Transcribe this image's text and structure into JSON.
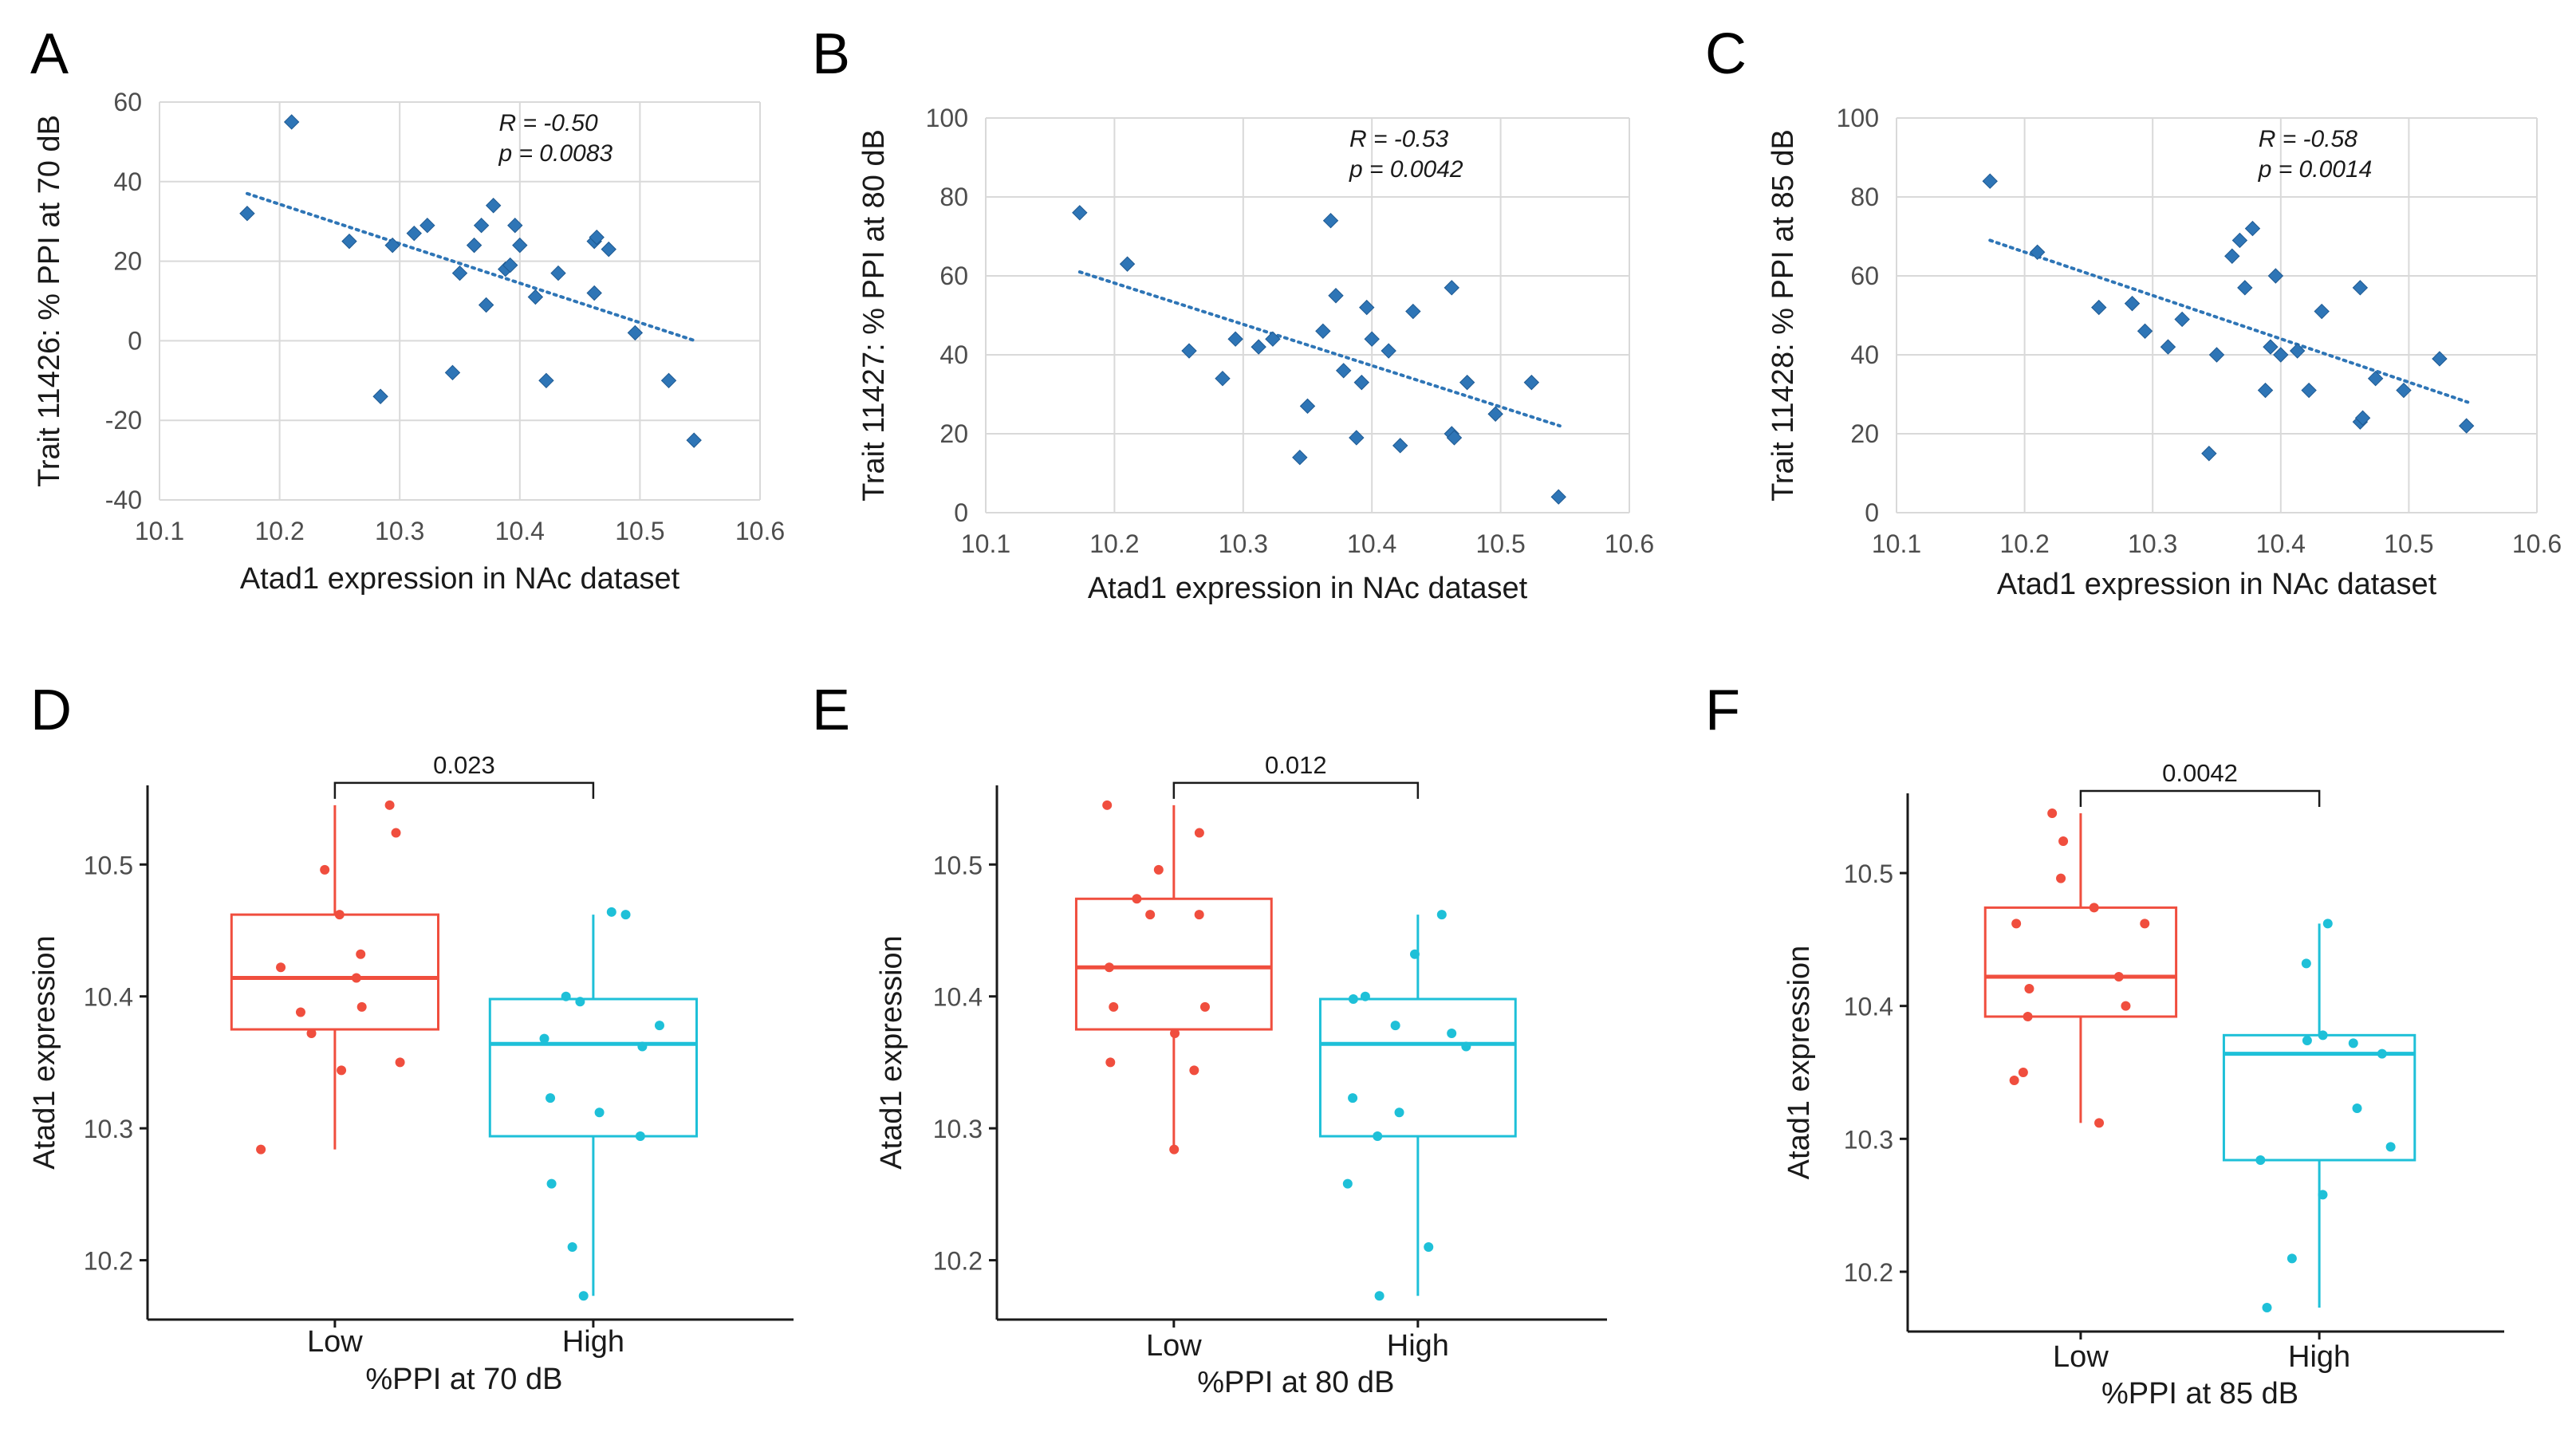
{
  "colors": {
    "point": "#2e75b6",
    "trend": "#2e75b6",
    "grid": "#d9d9d9",
    "low": "#f04e3e",
    "high": "#1ec0d8",
    "axis": "#1a1a1a"
  },
  "chart_data": [
    {
      "panel": "A",
      "type": "scatter",
      "xlabel": "Atad1 expression in NAc dataset",
      "ylabel": "Trait 11426: % PPI at 70 dB",
      "xlim": [
        10.1,
        10.6
      ],
      "ylim": [
        -40,
        60
      ],
      "xticks": [
        "10.1",
        "10.2",
        "10.3",
        "10.4",
        "10.5",
        "10.6"
      ],
      "yticks": [
        "-40",
        "-20",
        "0",
        "20",
        "40",
        "60"
      ],
      "annotation": [
        "R = -0.50",
        "p = 0.0083"
      ],
      "trendline": {
        "x": [
          10.173,
          10.546
        ],
        "y": [
          37,
          0
        ]
      },
      "points": [
        [
          10.173,
          32
        ],
        [
          10.21,
          55
        ],
        [
          10.258,
          25
        ],
        [
          10.284,
          -14
        ],
        [
          10.294,
          24
        ],
        [
          10.312,
          27
        ],
        [
          10.323,
          29
        ],
        [
          10.344,
          -8
        ],
        [
          10.35,
          17
        ],
        [
          10.362,
          24
        ],
        [
          10.368,
          29
        ],
        [
          10.372,
          9
        ],
        [
          10.378,
          34
        ],
        [
          10.388,
          18
        ],
        [
          10.392,
          19
        ],
        [
          10.396,
          29
        ],
        [
          10.4,
          24
        ],
        [
          10.413,
          11
        ],
        [
          10.422,
          -10
        ],
        [
          10.432,
          17
        ],
        [
          10.462,
          12
        ],
        [
          10.462,
          25
        ],
        [
          10.464,
          26
        ],
        [
          10.474,
          23
        ],
        [
          10.496,
          2
        ],
        [
          10.524,
          -10
        ],
        [
          10.545,
          -25
        ]
      ]
    },
    {
      "panel": "B",
      "type": "scatter",
      "xlabel": "Atad1 expression in NAc dataset",
      "ylabel": "Trait 11427: % PPI at 80 dB",
      "xlim": [
        10.1,
        10.6
      ],
      "ylim": [
        0,
        100
      ],
      "xticks": [
        "10.1",
        "10.2",
        "10.3",
        "10.4",
        "10.5",
        "10.6"
      ],
      "yticks": [
        "0",
        "20",
        "40",
        "60",
        "80",
        "100"
      ],
      "annotation": [
        "R = -0.53",
        "p = 0.0042"
      ],
      "trendline": {
        "x": [
          10.173,
          10.546
        ],
        "y": [
          61,
          22
        ]
      },
      "points": [
        [
          10.173,
          76
        ],
        [
          10.21,
          63
        ],
        [
          10.258,
          41
        ],
        [
          10.284,
          34
        ],
        [
          10.294,
          44
        ],
        [
          10.312,
          42
        ],
        [
          10.323,
          44
        ],
        [
          10.344,
          14
        ],
        [
          10.35,
          27
        ],
        [
          10.362,
          46
        ],
        [
          10.368,
          74
        ],
        [
          10.372,
          55
        ],
        [
          10.378,
          36
        ],
        [
          10.388,
          19
        ],
        [
          10.392,
          33
        ],
        [
          10.396,
          52
        ],
        [
          10.4,
          44
        ],
        [
          10.413,
          41
        ],
        [
          10.422,
          17
        ],
        [
          10.432,
          51
        ],
        [
          10.462,
          57
        ],
        [
          10.462,
          20
        ],
        [
          10.464,
          19
        ],
        [
          10.474,
          33
        ],
        [
          10.496,
          25
        ],
        [
          10.524,
          33
        ],
        [
          10.545,
          4
        ]
      ]
    },
    {
      "panel": "C",
      "type": "scatter",
      "xlabel": "Atad1 expression in NAc dataset",
      "ylabel": "Trait 11428: % PPI at 85 dB",
      "xlim": [
        10.1,
        10.6
      ],
      "ylim": [
        0,
        100
      ],
      "xticks": [
        "10.1",
        "10.2",
        "10.3",
        "10.4",
        "10.5",
        "10.6"
      ],
      "yticks": [
        "0",
        "20",
        "40",
        "60",
        "80",
        "100"
      ],
      "annotation": [
        "R = -0.58",
        "p = 0.0014"
      ],
      "trendline": {
        "x": [
          10.173,
          10.546
        ],
        "y": [
          69,
          28
        ]
      },
      "points": [
        [
          10.173,
          84
        ],
        [
          10.21,
          66
        ],
        [
          10.258,
          52
        ],
        [
          10.284,
          53
        ],
        [
          10.294,
          46
        ],
        [
          10.312,
          42
        ],
        [
          10.323,
          49
        ],
        [
          10.344,
          15
        ],
        [
          10.35,
          40
        ],
        [
          10.362,
          65
        ],
        [
          10.368,
          69
        ],
        [
          10.372,
          57
        ],
        [
          10.378,
          72
        ],
        [
          10.388,
          31
        ],
        [
          10.392,
          42
        ],
        [
          10.396,
          60
        ],
        [
          10.4,
          40
        ],
        [
          10.413,
          41
        ],
        [
          10.422,
          31
        ],
        [
          10.432,
          51
        ],
        [
          10.462,
          57
        ],
        [
          10.462,
          23
        ],
        [
          10.464,
          24
        ],
        [
          10.474,
          34
        ],
        [
          10.496,
          31
        ],
        [
          10.524,
          39
        ],
        [
          10.545,
          22
        ]
      ]
    },
    {
      "panel": "D",
      "type": "box",
      "xlabel": "%PPI at 70 dB",
      "ylabel": "Atad1 expression",
      "categories": [
        "Low",
        "High"
      ],
      "ylim": [
        10.155,
        10.56
      ],
      "yticks": [
        "10.2",
        "10.3",
        "10.4",
        "10.5"
      ],
      "significance": "0.023",
      "groups": [
        {
          "name": "Low",
          "min": 10.284,
          "q1": 10.375,
          "median": 10.414,
          "q3": 10.462,
          "max": 10.545,
          "points": [
            10.545,
            10.524,
            10.496,
            10.462,
            10.432,
            10.422,
            10.414,
            10.392,
            10.388,
            10.372,
            10.35,
            10.344,
            10.284
          ]
        },
        {
          "name": "High",
          "min": 10.173,
          "q1": 10.294,
          "median": 10.364,
          "q3": 10.398,
          "max": 10.462,
          "points": [
            10.462,
            10.464,
            10.4,
            10.396,
            10.378,
            10.368,
            10.362,
            10.323,
            10.312,
            10.294,
            10.258,
            10.21,
            10.173
          ]
        }
      ]
    },
    {
      "panel": "E",
      "type": "box",
      "xlabel": "%PPI at 80 dB",
      "ylabel": "Atad1 expression",
      "categories": [
        "Low",
        "High"
      ],
      "ylim": [
        10.155,
        10.56
      ],
      "yticks": [
        "10.2",
        "10.3",
        "10.4",
        "10.5"
      ],
      "significance": "0.012",
      "groups": [
        {
          "name": "Low",
          "min": 10.284,
          "q1": 10.375,
          "median": 10.422,
          "q3": 10.474,
          "max": 10.545,
          "points": [
            10.545,
            10.524,
            10.496,
            10.474,
            10.462,
            10.462,
            10.422,
            10.392,
            10.392,
            10.372,
            10.35,
            10.344,
            10.284
          ]
        },
        {
          "name": "High",
          "min": 10.173,
          "q1": 10.294,
          "median": 10.364,
          "q3": 10.398,
          "max": 10.462,
          "points": [
            10.462,
            10.432,
            10.4,
            10.398,
            10.378,
            10.372,
            10.362,
            10.323,
            10.312,
            10.294,
            10.258,
            10.21,
            10.173
          ]
        }
      ]
    },
    {
      "panel": "F",
      "type": "box",
      "xlabel": "%PPI at 85 dB",
      "ylabel": "Atad1 expression",
      "categories": [
        "Low",
        "High"
      ],
      "ylim": [
        10.155,
        10.56
      ],
      "yticks": [
        "10.2",
        "10.3",
        "10.4",
        "10.5"
      ],
      "significance": "0.0042",
      "groups": [
        {
          "name": "Low",
          "min": 10.312,
          "q1": 10.392,
          "median": 10.422,
          "q3": 10.474,
          "max": 10.545,
          "points": [
            10.545,
            10.524,
            10.496,
            10.474,
            10.462,
            10.462,
            10.422,
            10.413,
            10.4,
            10.392,
            10.35,
            10.344,
            10.312
          ]
        },
        {
          "name": "High",
          "min": 10.173,
          "q1": 10.284,
          "median": 10.364,
          "q3": 10.378,
          "max": 10.462,
          "points": [
            10.462,
            10.432,
            10.378,
            10.374,
            10.372,
            10.364,
            10.323,
            10.294,
            10.284,
            10.258,
            10.21,
            10.173
          ]
        }
      ]
    }
  ]
}
